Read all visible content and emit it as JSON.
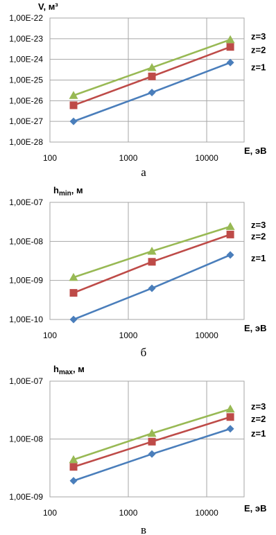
{
  "chart_data": [
    {
      "type": "line",
      "ylabel": "V, м³",
      "xlabel": "E, эВ",
      "caption": "а",
      "x_scale": "log",
      "y_scale": "log",
      "x": [
        200,
        2000,
        20000
      ],
      "xticks": [
        "100",
        "1000",
        "10000"
      ],
      "xtick_values": [
        100,
        1000,
        10000
      ],
      "xlim": [
        100,
        30000
      ],
      "ylim": [
        1e-28,
        1e-22
      ],
      "yticks": [
        "1,00E-22",
        "1,00E-23",
        "1,00E-24",
        "1,00E-25",
        "1,00E-26",
        "1,00E-27",
        "1,00E-28"
      ],
      "ytick_values": [
        1e-22,
        1e-23,
        1e-24,
        1e-25,
        1e-26,
        1e-27,
        1e-28
      ],
      "grid": true,
      "series": [
        {
          "name": "z=1",
          "values": [
            1e-27,
            2.5e-26,
            7e-25
          ],
          "color": "#4a7ebb",
          "marker": "diamond"
        },
        {
          "name": "z=2",
          "values": [
            6e-27,
            1.5e-25,
            4e-24
          ],
          "color": "#be4b48",
          "marker": "square"
        },
        {
          "name": "z=3",
          "values": [
            1.8e-26,
            4e-25,
            9e-24
          ],
          "color": "#98b954",
          "marker": "triangle"
        }
      ]
    },
    {
      "type": "line",
      "ylabel": "hmin, м",
      "ylabel_main": "h",
      "ylabel_sub": "min",
      "ylabel_tail": ", м",
      "xlabel": "E, эВ",
      "caption": "б",
      "x_scale": "log",
      "y_scale": "log",
      "x": [
        200,
        2000,
        20000
      ],
      "xticks": [
        "100",
        "1000",
        "10000"
      ],
      "xtick_values": [
        100,
        1000,
        10000
      ],
      "xlim": [
        100,
        30000
      ],
      "ylim": [
        1e-10,
        1e-07
      ],
      "yticks": [
        "1,00E-07",
        "1,00E-08",
        "1,00E-09",
        "1,00E-10"
      ],
      "ytick_values": [
        1e-07,
        1e-08,
        1e-09,
        1e-10
      ],
      "grid": true,
      "series": [
        {
          "name": "z=1",
          "values": [
            1e-10,
            6.3e-10,
            4.5e-09
          ],
          "color": "#4a7ebb",
          "marker": "diamond"
        },
        {
          "name": "z=2",
          "values": [
            4.8e-10,
            3e-09,
            1.5e-08
          ],
          "color": "#be4b48",
          "marker": "square"
        },
        {
          "name": "z=3",
          "values": [
            1.2e-09,
            5.6e-09,
            2.4e-08
          ],
          "color": "#98b954",
          "marker": "triangle"
        }
      ]
    },
    {
      "type": "line",
      "ylabel": "hmax, м",
      "ylabel_main": "h",
      "ylabel_sub": "max",
      "ylabel_tail": ", м",
      "xlabel": "E, эВ",
      "caption": "в",
      "x_scale": "log",
      "y_scale": "log",
      "x": [
        200,
        2000,
        20000
      ],
      "xticks": [
        "100",
        "1000",
        "10000"
      ],
      "xtick_values": [
        100,
        1000,
        10000
      ],
      "xlim": [
        100,
        30000
      ],
      "ylim": [
        1e-09,
        1e-07
      ],
      "yticks": [
        "1,00E-07",
        "1,00E-08",
        "1,00E-09"
      ],
      "ytick_values": [
        1e-07,
        1e-08,
        1e-09
      ],
      "grid": true,
      "series": [
        {
          "name": "z=1",
          "values": [
            1.9e-09,
            5.5e-09,
            1.5e-08
          ],
          "color": "#4a7ebb",
          "marker": "diamond"
        },
        {
          "name": "z=2",
          "values": [
            3.3e-09,
            9e-09,
            2.4e-08
          ],
          "color": "#be4b48",
          "marker": "square"
        },
        {
          "name": "z=3",
          "values": [
            4.4e-09,
            1.25e-08,
            3.3e-08
          ],
          "color": "#98b954",
          "marker": "triangle"
        }
      ]
    }
  ]
}
